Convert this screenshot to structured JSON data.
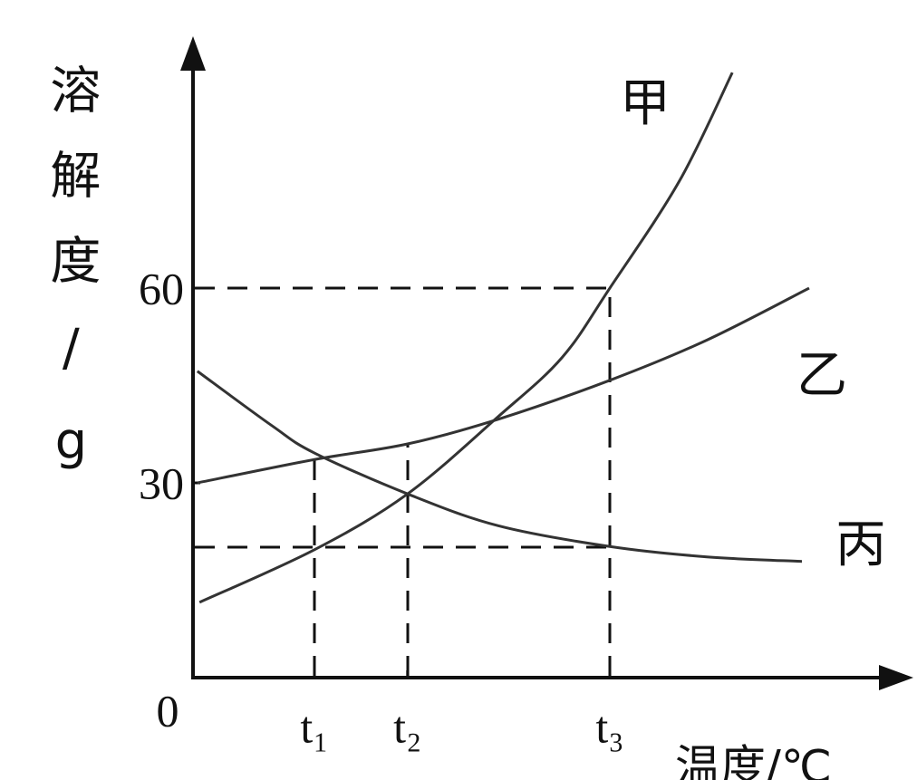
{
  "chart_data": {
    "type": "line",
    "ylabel": "溶解度/g",
    "xlabel": "温度/℃",
    "origin_label": "0",
    "xlim": [
      0,
      98.5
    ],
    "ylim": [
      0,
      98.1
    ],
    "xticks": [
      {
        "value": 16.75,
        "label": "t₁"
      },
      {
        "value": 29.6,
        "label": "t₂"
      },
      {
        "value": 57.5,
        "label": "t₃"
      }
    ],
    "yticks": [
      30,
      60
    ],
    "series": [
      {
        "name": "甲",
        "color": "#333333",
        "x": [
          0.9,
          16.75,
          29.6,
          42.1,
          50.9,
          57.5,
          67.1,
          74.4
        ],
        "values": [
          11.6,
          19.7,
          28.3,
          40.2,
          49.3,
          60,
          76.5,
          93.2
        ]
      },
      {
        "name": "乙",
        "color": "#333333",
        "x": [
          0.6,
          16.75,
          29.6,
          42.1,
          57.5,
          70.9,
          85
        ],
        "values": [
          30,
          33.6,
          36,
          39.8,
          45.8,
          52,
          60
        ]
      },
      {
        "name": "丙",
        "color": "#333333",
        "x": [
          0.6,
          10.9,
          16.75,
          29.6,
          42.1,
          57.5,
          70.9,
          84
        ],
        "values": [
          47.2,
          38.8,
          34.6,
          28.3,
          23.4,
          20.2,
          18.6,
          17.9
        ]
      }
    ]
  }
}
